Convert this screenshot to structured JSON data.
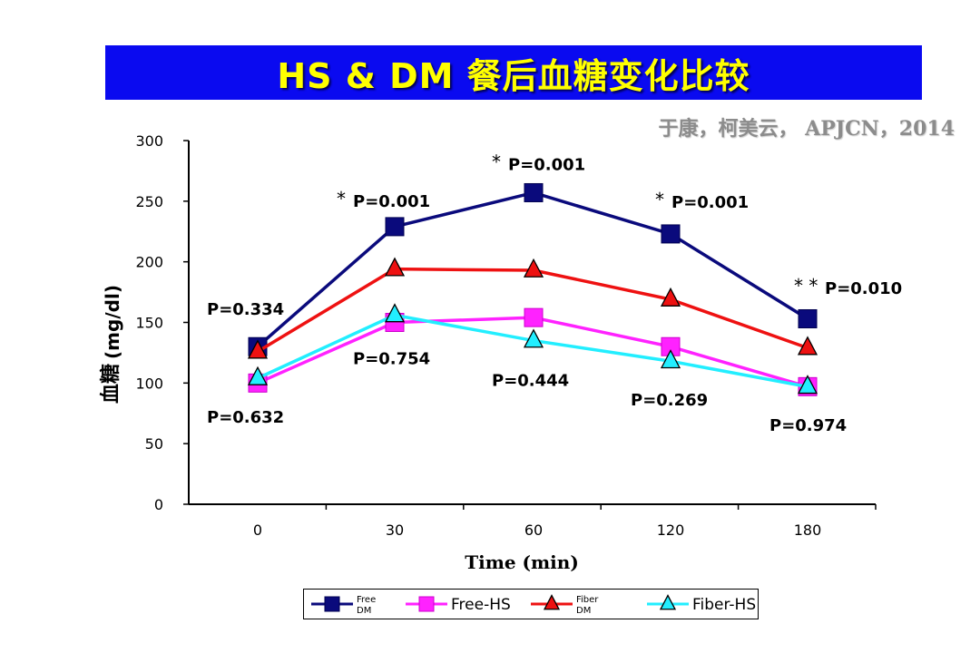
{
  "header": {
    "title": "HS & DM 餐后血糖变化比较",
    "citation": "于康，柯美云， APJCN，2014"
  },
  "colors": {
    "title_bg": "#0a0af0",
    "title_fg": "#ffff00",
    "free_dm": "#0a0a7c",
    "free_hs": "#ff22ff",
    "fiber_dm": "#ee1111",
    "fiber_hs": "#22eeff"
  },
  "chart_data": {
    "type": "line",
    "categories": [
      "0",
      "30",
      "60",
      "120",
      "180"
    ],
    "xlabel": "Time (min)",
    "ylabel_cn": "血糖",
    "ylabel_unit": "(mg/dl)",
    "ylim": [
      0,
      300
    ],
    "yticks": [
      "0",
      "50",
      "100",
      "150",
      "200",
      "250",
      "300"
    ],
    "grid": false,
    "legend_position": "bottom",
    "series": [
      {
        "name_line1": "Free",
        "name_line2": "DM",
        "marker": "square",
        "color": "#0a0a7c",
        "values": [
          130,
          229,
          257,
          223,
          153
        ]
      },
      {
        "name": "Free-HS",
        "marker": "square",
        "color": "#ff22ff",
        "values": [
          100,
          150,
          154,
          130,
          97
        ]
      },
      {
        "name_line1": "Fiber",
        "name_line2": "DM",
        "marker": "triangle",
        "color": "#ee1111",
        "values": [
          126,
          194,
          193,
          169,
          129
        ]
      },
      {
        "name": "Fiber-HS",
        "marker": "triangle",
        "color": "#22eeff",
        "values": [
          104,
          156,
          135,
          118,
          97
        ]
      }
    ],
    "annotations": [
      {
        "text": "P=0.334",
        "cat": 0,
        "y": 161,
        "anchor": "start"
      },
      {
        "text": "P=0.632",
        "cat": 0,
        "y": 72,
        "anchor": "start"
      },
      {
        "star": "*",
        "text": "P=0.001",
        "cat": 1,
        "y": 247,
        "anchor": "start"
      },
      {
        "text": "P=0.754",
        "cat": 1,
        "y": 120,
        "anchor": "start"
      },
      {
        "star": "*",
        "text": "P=0.001",
        "cat": 2,
        "y": 277,
        "anchor": "start"
      },
      {
        "text": "P=0.444",
        "cat": 2,
        "y": 102,
        "anchor": "start"
      },
      {
        "star": "*",
        "text": "P=0.001",
        "cat": 3,
        "y": 246,
        "anchor": "start"
      },
      {
        "text": "P=0.269",
        "cat": 3,
        "y": 86,
        "anchor": "start"
      },
      {
        "star": "* *",
        "text": "P=0.010",
        "cat": 4,
        "y": 175,
        "anchor": "start"
      },
      {
        "text": "P=0.974",
        "cat": 4,
        "y": 65,
        "anchor": "start"
      }
    ]
  }
}
